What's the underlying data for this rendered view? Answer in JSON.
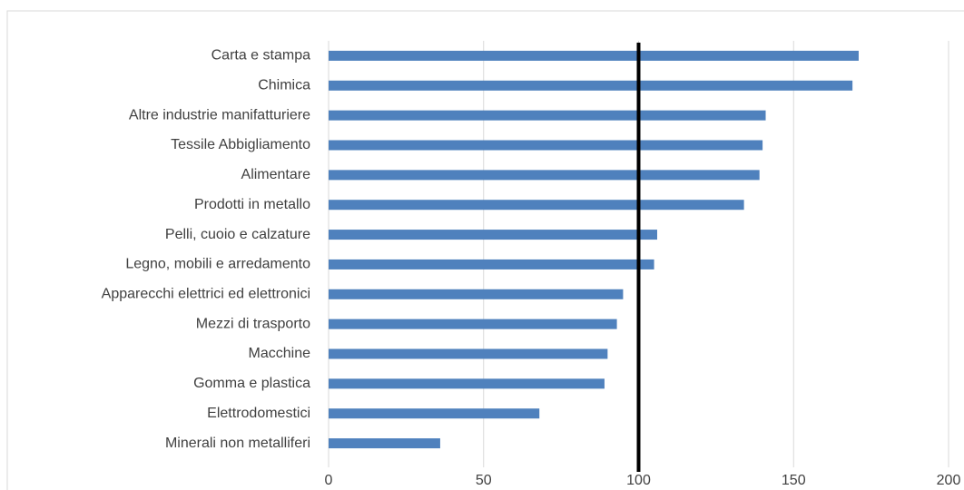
{
  "chart_data": {
    "type": "bar",
    "orientation": "horizontal",
    "categories": [
      "Carta e stampa",
      "Chimica",
      "Altre industrie manifatturiere",
      "Tessile Abbigliamento",
      "Alimentare",
      "Prodotti in metallo",
      "Pelli, cuoio e calzature",
      "Legno, mobili e arredamento",
      "Apparecchi elettrici ed elettronici",
      "Mezzi di trasporto",
      "Macchine",
      "Gomma e plastica",
      "Elettrodomestici",
      "Minerali non metalliferi"
    ],
    "values": [
      171,
      169,
      141,
      140,
      139,
      134,
      106,
      105,
      95,
      93,
      90,
      89,
      68,
      36
    ],
    "color": "#4f81bd",
    "xlim": [
      0,
      200
    ],
    "xticks": [
      0,
      50,
      100,
      150,
      200
    ],
    "grid": true,
    "reference_line": 100
  }
}
